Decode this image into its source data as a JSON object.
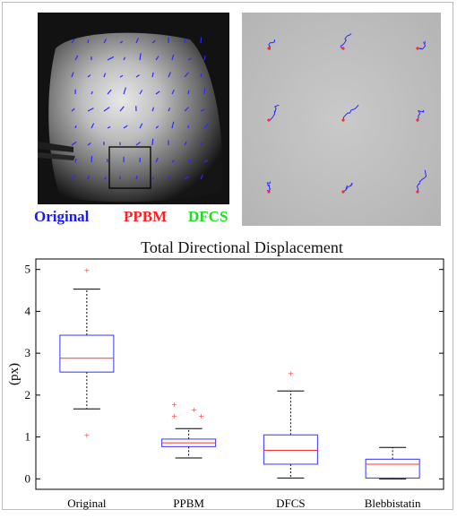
{
  "images": {
    "left_label": "Microscopy image with displacement arrows",
    "right_label": "Zoomed region displacement traces"
  },
  "legend": [
    {
      "label": "Original",
      "color": "#1a1aff"
    },
    {
      "label": "PPBM",
      "color": "#ff2020"
    },
    {
      "label": "DFCS",
      "color": "#20dd20"
    }
  ],
  "chart_data": {
    "type": "box",
    "title": "Total Directional Displacement",
    "xlabel": "",
    "ylabel": "(px)",
    "ylim": [
      -0.25,
      5.25
    ],
    "yticks": [
      0,
      1,
      2,
      3,
      4,
      5
    ],
    "box_color": "#3333ff",
    "median_color": "#ff3333",
    "outlier_color": "#ff3333",
    "whisker_color": "#000000",
    "categories": [
      "Original",
      "PPBM",
      "DFCS",
      "Blebbistatin"
    ],
    "boxes": [
      {
        "name": "Original",
        "whisker_low": 1.67,
        "q1": 2.55,
        "median": 2.88,
        "q3": 3.43,
        "whisker_high": 4.53,
        "outliers": [
          4.98,
          1.05
        ]
      },
      {
        "name": "PPBM",
        "whisker_low": 0.5,
        "q1": 0.77,
        "median": 0.86,
        "q3": 0.95,
        "whisker_high": 1.2,
        "outliers": [
          1.78,
          1.65,
          1.5,
          1.5
        ]
      },
      {
        "name": "DFCS",
        "whisker_low": 0.02,
        "q1": 0.35,
        "median": 0.68,
        "q3": 1.05,
        "whisker_high": 2.1,
        "outliers": [
          2.52
        ]
      },
      {
        "name": "Blebbistatin",
        "whisker_low": 0.0,
        "q1": 0.02,
        "median": 0.35,
        "q3": 0.47,
        "whisker_high": 0.75,
        "outliers": []
      }
    ]
  }
}
